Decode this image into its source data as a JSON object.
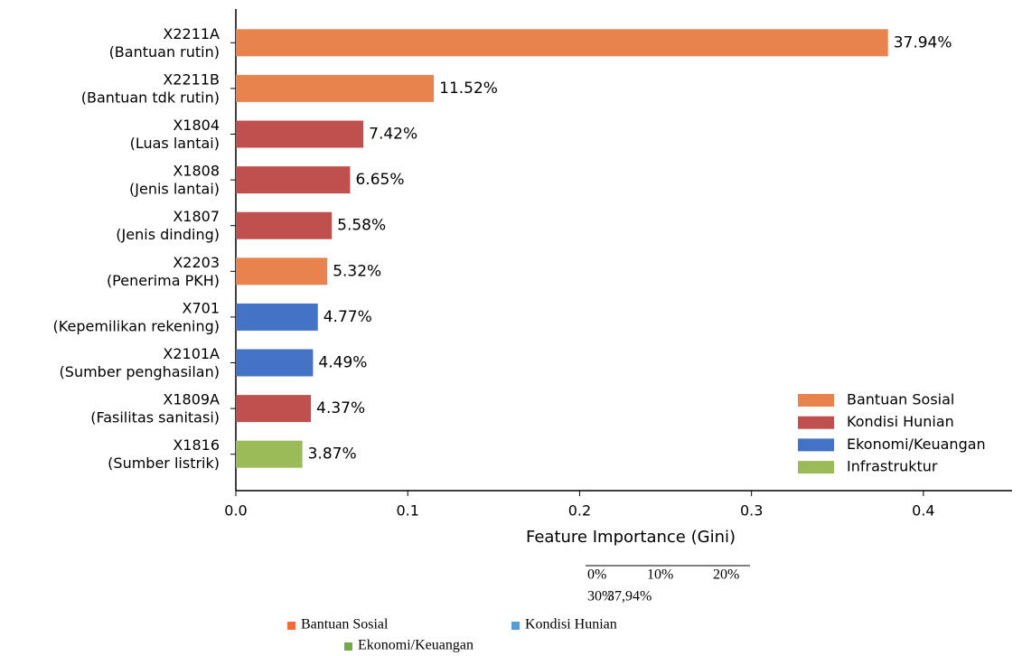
{
  "chart_data": {
    "type": "barh",
    "xlabel": "Feature Importance (Gini)",
    "categories": [
      [
        "X2211A",
        "(Bantuan rutin)"
      ],
      [
        "X2211B",
        "(Bantuan tdk rutin)"
      ],
      [
        "X1804",
        "(Luas lantai)"
      ],
      [
        "X1808",
        "(Jenis lantai)"
      ],
      [
        "X1807",
        "(Jenis dinding)"
      ],
      [
        "X2203",
        "(Penerima PKH)"
      ],
      [
        "X701",
        "(Kepemilikan rekening)"
      ],
      [
        "X2101A",
        "(Sumber penghasilan)"
      ],
      [
        "X1809A",
        "(Fasilitas sanitasi)"
      ],
      [
        "X1816",
        "(Sumber listrik)"
      ]
    ],
    "values": [
      0.3794,
      0.1152,
      0.0742,
      0.0665,
      0.0558,
      0.0532,
      0.0477,
      0.0449,
      0.0437,
      0.0387
    ],
    "value_labels": [
      "37.94%",
      "11.52%",
      "7.42%",
      "6.65%",
      "5.58%",
      "5.32%",
      "4.77%",
      "4.49%",
      "4.37%",
      "3.87%"
    ],
    "bar_colors": [
      "#e8834e",
      "#e8834e",
      "#c0504d",
      "#c0504d",
      "#c0504d",
      "#e8834e",
      "#4472c4",
      "#4472c4",
      "#c0504d",
      "#9bbb59"
    ],
    "xlim": [
      0,
      0.45
    ],
    "xticks": [
      {
        "value": 0,
        "label": "0.0"
      },
      0.1,
      0.2,
      0.3,
      0.4
    ],
    "legend_position": "lower right",
    "legend": [
      {
        "name": "Bantuan Sosial",
        "color": "#e8834e"
      },
      {
        "name": "Kondisi Hunian",
        "color": "#c0504d"
      },
      {
        "name": "Ekonomi/Keuangan",
        "color": "#4472c4"
      },
      {
        "name": "Infrastruktur",
        "color": "#9bbb59"
      }
    ]
  },
  "extra": {
    "scale_labels": [
      "0%",
      "10%",
      "20%",
      "30%",
      "37,94%"
    ],
    "legend2": [
      {
        "name": "Bantuan Sosial",
        "color": "#f26b3a"
      },
      {
        "name": "Kondisi Hunian",
        "color": "#5b9bd5"
      },
      {
        "name": "Ekonomi/Keuangan",
        "color": "#70ad47"
      }
    ]
  }
}
